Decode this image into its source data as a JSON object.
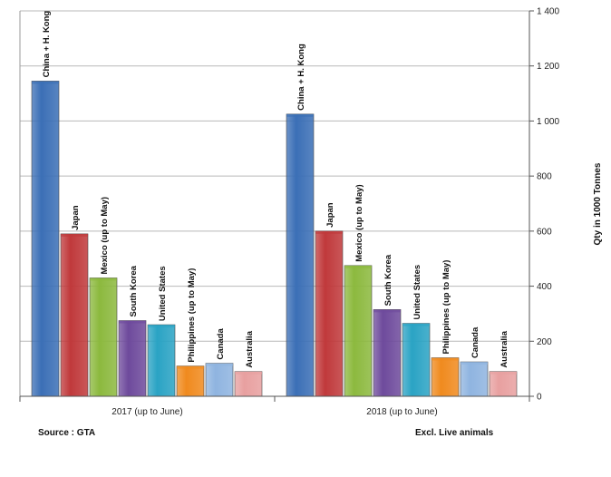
{
  "chart_data": {
    "type": "bar",
    "categories": [
      "2017 (up to June)",
      "2018 (up to June)"
    ],
    "series": [
      {
        "name": "China + H. Kong",
        "color": "#3b6fb6",
        "values": [
          1145,
          1025
        ]
      },
      {
        "name": "Japan",
        "color": "#c0393b",
        "values": [
          590,
          600
        ]
      },
      {
        "name": "Mexico (up to May)",
        "color": "#8cb93e",
        "values": [
          430,
          475
        ]
      },
      {
        "name": "South Korea",
        "color": "#6e4a9c",
        "values": [
          275,
          315
        ]
      },
      {
        "name": "United States",
        "color": "#2aa3c4",
        "values": [
          260,
          265
        ]
      },
      {
        "name": "Philippines (up to May)",
        "color": "#f08a1e",
        "values": [
          110,
          140
        ]
      },
      {
        "name": "Canada",
        "color": "#8fb4e0",
        "values": [
          120,
          125
        ]
      },
      {
        "name": "Australia",
        "color": "#e8a0a0",
        "values": [
          90,
          90
        ]
      }
    ],
    "ylim": [
      0,
      1400
    ],
    "yticks": [
      0,
      200,
      400,
      600,
      800,
      1000,
      1200,
      1400
    ],
    "ytick_labels": [
      "0",
      "200",
      "400",
      "600",
      "800",
      "1 000",
      "1 200",
      "1 400"
    ],
    "ylabel": "Qty in 1000 Tonnes",
    "y_axis_side": "right",
    "grid": true,
    "legend": "none (labels printed above bars)"
  },
  "footnotes": {
    "source": "Source : GTA",
    "note": "Excl. Live animals"
  }
}
